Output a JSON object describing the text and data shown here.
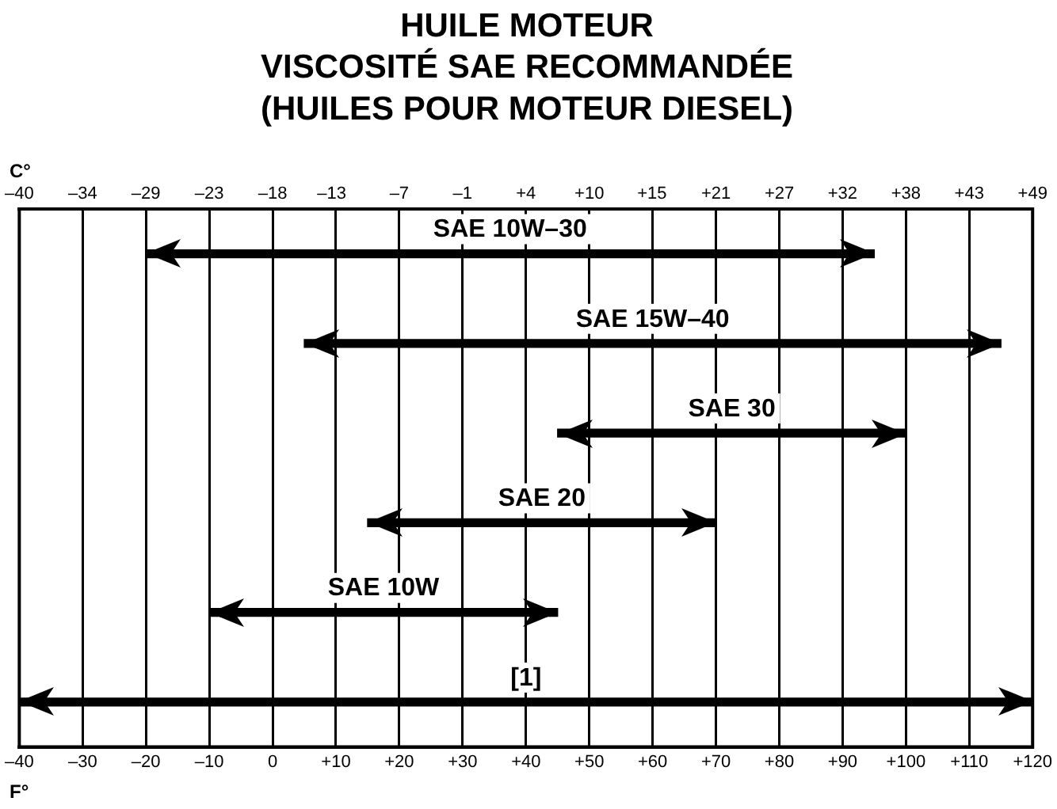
{
  "chart_data": {
    "type": "bar",
    "orientation": "horizontal",
    "title": "HUILE MOTEUR\nVISCOSITÉ SAE RECOMMANDÉE\n(HUILES POUR MOTEUR DIESEL)",
    "xlabel": "F°",
    "x2label": "C°",
    "categories": [
      "SAE 10W–30",
      "SAE 15W–40",
      "SAE 30",
      "SAE 20",
      "SAE 10W",
      "[1]"
    ],
    "base": [
      -20,
      5,
      45,
      15,
      -10,
      -40
    ],
    "values": [
      115,
      110,
      55,
      55,
      55,
      160
    ],
    "color": "#000000",
    "xlim": [
      -40,
      120
    ],
    "xticks": [
      {
        "value": -40,
        "label": "–40"
      },
      {
        "value": -30,
        "label": "–30"
      },
      {
        "value": -20,
        "label": "–20"
      },
      {
        "value": -10,
        "label": "–10"
      },
      0,
      {
        "value": 10,
        "label": "+10"
      },
      {
        "value": 20,
        "label": "+20"
      },
      {
        "value": 30,
        "label": "+30"
      },
      {
        "value": 40,
        "label": "+40"
      },
      {
        "value": 50,
        "label": "+50"
      },
      {
        "value": 60,
        "label": "+60"
      },
      {
        "value": 70,
        "label": "+70"
      },
      {
        "value": 80,
        "label": "+80"
      },
      {
        "value": 90,
        "label": "+90"
      },
      {
        "value": 100,
        "label": "+100"
      },
      {
        "value": 110,
        "label": "+110"
      },
      {
        "value": 120,
        "label": "+120"
      }
    ],
    "x2lim": [
      -40,
      48.89
    ],
    "x2ticks": [
      {
        "value": -40,
        "label": "–40"
      },
      {
        "value": -34.44,
        "label": "–34"
      },
      {
        "value": -28.89,
        "label": "–29"
      },
      {
        "value": -23.33,
        "label": "–23"
      },
      {
        "value": -17.78,
        "label": "–18"
      },
      {
        "value": -12.6,
        "label": "–13"
      },
      {
        "value": -6.67,
        "label": "–7"
      },
      {
        "value": -1.11,
        "label": "–1"
      },
      {
        "value": 4.44,
        "label": "+4"
      },
      {
        "value": 10,
        "label": "+10"
      },
      {
        "value": 15.5,
        "label": "+15"
      },
      {
        "value": 21.11,
        "label": "+21"
      },
      {
        "value": 26.67,
        "label": "+27"
      },
      {
        "value": 32.22,
        "label": "+32"
      },
      {
        "value": 37.78,
        "label": "+38"
      },
      {
        "value": 43.33,
        "label": "+43"
      },
      {
        "value": 48.89,
        "label": "+49"
      }
    ],
    "grid": "x",
    "legend": false
  }
}
